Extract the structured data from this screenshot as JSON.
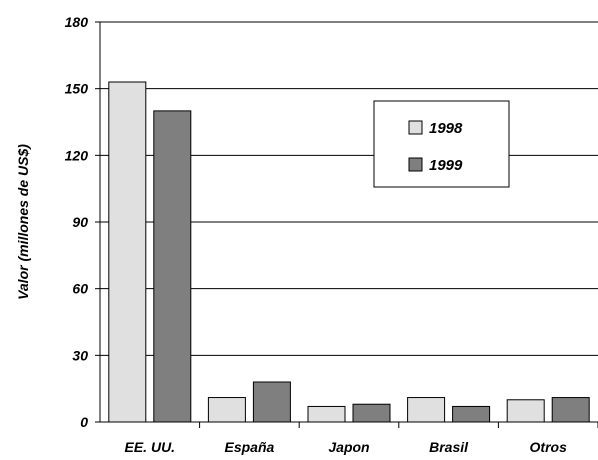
{
  "chart_data": {
    "type": "bar",
    "categories": [
      "EE. UU.",
      "España",
      "Japon",
      "Brasil",
      "Otros"
    ],
    "series": [
      {
        "name": "1998",
        "values": [
          153,
          11,
          7,
          11,
          10
        ]
      },
      {
        "name": "1999",
        "values": [
          140,
          18,
          8,
          7,
          11
        ]
      }
    ],
    "ylabel": "Valor (millones de US$)",
    "xlabel": "",
    "ylim": [
      0,
      180
    ],
    "yticks": [
      0,
      30,
      60,
      90,
      120,
      150,
      180
    ],
    "grid": true,
    "legend_position": "top-right",
    "colors": {
      "1998": "#e0e0e0",
      "1999": "#7f7f7f"
    }
  }
}
